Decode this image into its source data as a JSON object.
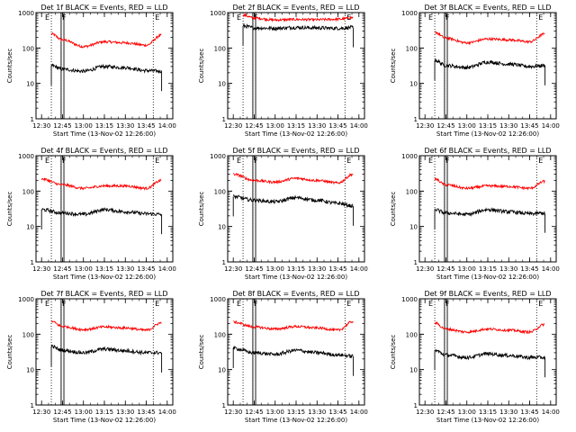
{
  "chart_data": [
    {
      "type": "line",
      "title": "Det 1f BLACK = Events, RED = LLD",
      "xlabel": "Start Time (13-Nov-02 12:26:00)",
      "ylabel": "Counts/sec",
      "y_scale": "log",
      "ylim": [
        1,
        1000
      ],
      "yticks": [
        "1",
        "10",
        "100",
        "1000"
      ],
      "xticks": [
        "12:30",
        "12:45",
        "13:00",
        "13:15",
        "13:30",
        "13:45",
        "14:00"
      ],
      "xlim": [
        "12:26",
        "14:04"
      ],
      "x": [
        "12:37",
        "12:45",
        "13:00",
        "13:15",
        "13:30",
        "13:45",
        "13:56"
      ],
      "series": [
        {
          "name": "LLD",
          "color": "#ff0000",
          "values": [
            250,
            170,
            110,
            150,
            140,
            120,
            230
          ]
        },
        {
          "name": "Events",
          "color": "#000000",
          "values": [
            32,
            25,
            22,
            30,
            28,
            23,
            22
          ]
        }
      ],
      "annotations": [
        "E",
        "F",
        "E"
      ],
      "dotted_lines": [
        "12:37",
        "12:44",
        "13:50"
      ],
      "box_lines": [
        "12:44",
        "12:46"
      ]
    },
    {
      "type": "line",
      "title": "Det 2f BLACK = Events, RED = LLD",
      "xlabel": "Start Time (13-Nov-02 12:26:00)",
      "ylabel": "Counts/sec",
      "y_scale": "log",
      "ylim": [
        1,
        1000
      ],
      "yticks": [
        "1",
        "10",
        "100",
        "1000"
      ],
      "xticks": [
        "12:30",
        "12:45",
        "13:00",
        "13:15",
        "13:30",
        "13:45",
        "14:00"
      ],
      "xlim": [
        "12:26",
        "14:04"
      ],
      "x": [
        "12:37",
        "12:45",
        "13:00",
        "13:15",
        "13:30",
        "13:45",
        "13:56"
      ],
      "series": [
        {
          "name": "LLD",
          "color": "#ff0000",
          "values": [
            850,
            700,
            620,
            640,
            630,
            650,
            720
          ]
        },
        {
          "name": "Events",
          "color": "#000000",
          "values": [
            420,
            370,
            360,
            380,
            370,
            360,
            380
          ]
        }
      ],
      "annotations": [
        "E",
        "F",
        "E"
      ],
      "dotted_lines": [
        "12:37",
        "12:44",
        "13:50"
      ],
      "box_lines": [
        "12:44",
        "12:46"
      ]
    },
    {
      "type": "line",
      "title": "Det 3f BLACK = Events, RED = LLD",
      "xlabel": "Start Time (13-Nov-02 12:26:00)",
      "ylabel": "Counts/sec",
      "y_scale": "log",
      "ylim": [
        1,
        1000
      ],
      "yticks": [
        "1",
        "10",
        "100",
        "1000"
      ],
      "xticks": [
        "12:30",
        "12:45",
        "13:00",
        "13:15",
        "13:30",
        "13:45",
        "14:00"
      ],
      "xlim": [
        "12:26",
        "14:04"
      ],
      "x": [
        "12:37",
        "12:45",
        "13:00",
        "13:15",
        "13:30",
        "13:45",
        "13:56"
      ],
      "series": [
        {
          "name": "LLD",
          "color": "#ff0000",
          "values": [
            280,
            190,
            140,
            180,
            170,
            150,
            250
          ]
        },
        {
          "name": "Events",
          "color": "#000000",
          "values": [
            45,
            32,
            28,
            40,
            35,
            30,
            32
          ]
        }
      ],
      "annotations": [
        "E",
        "F",
        "E"
      ],
      "dotted_lines": [
        "12:37",
        "12:44",
        "13:50"
      ],
      "box_lines": [
        "12:44",
        "12:46"
      ]
    },
    {
      "type": "line",
      "title": "Det 4f BLACK = Events, RED = LLD",
      "xlabel": "Start Time (13-Nov-02 12:26:00)",
      "ylabel": "Counts/sec",
      "y_scale": "log",
      "ylim": [
        1,
        1000
      ],
      "yticks": [
        "1",
        "10",
        "100",
        "1000"
      ],
      "xticks": [
        "12:30",
        "12:45",
        "13:00",
        "13:15",
        "13:30",
        "13:45",
        "14:00"
      ],
      "xlim": [
        "12:26",
        "14:04"
      ],
      "x": [
        "12:30",
        "12:45",
        "13:00",
        "13:15",
        "13:30",
        "13:45",
        "13:56"
      ],
      "series": [
        {
          "name": "LLD",
          "color": "#ff0000",
          "values": [
            220,
            150,
            120,
            140,
            140,
            120,
            200
          ]
        },
        {
          "name": "Events",
          "color": "#000000",
          "values": [
            30,
            24,
            22,
            30,
            26,
            23,
            22
          ]
        }
      ],
      "annotations": [
        "E",
        "F",
        "E"
      ],
      "dotted_lines": [
        "12:37",
        "12:44",
        "13:50"
      ],
      "box_lines": [
        "12:44",
        "12:46"
      ]
    },
    {
      "type": "line",
      "title": "Det 5f BLACK = Events, RED = LLD",
      "xlabel": "Start Time (13-Nov-02 12:26:00)",
      "ylabel": "Counts/sec",
      "y_scale": "log",
      "ylim": [
        1,
        1000
      ],
      "yticks": [
        "1",
        "10",
        "100",
        "1000"
      ],
      "xticks": [
        "12:30",
        "12:45",
        "13:00",
        "13:15",
        "13:30",
        "13:45",
        "14:00"
      ],
      "xlim": [
        "12:26",
        "14:04"
      ],
      "x": [
        "12:30",
        "12:45",
        "13:00",
        "13:15",
        "13:30",
        "13:45",
        "13:56"
      ],
      "series": [
        {
          "name": "LLD",
          "color": "#ff0000",
          "values": [
            300,
            200,
            180,
            230,
            200,
            170,
            300
          ]
        },
        {
          "name": "Events",
          "color": "#000000",
          "values": [
            70,
            55,
            50,
            65,
            55,
            45,
            38
          ]
        }
      ],
      "annotations": [
        "E",
        "F",
        "E"
      ],
      "dotted_lines": [
        "12:37",
        "12:44",
        "13:50"
      ],
      "box_lines": [
        "12:44",
        "12:46"
      ]
    },
    {
      "type": "line",
      "title": "Det 6f BLACK = Events, RED = LLD",
      "xlabel": "Start Time (13-Nov-02 12:26:00)",
      "ylabel": "Counts/sec",
      "y_scale": "log",
      "ylim": [
        1,
        1000
      ],
      "yticks": [
        "1",
        "10",
        "100",
        "1000"
      ],
      "xticks": [
        "12:30",
        "12:45",
        "13:00",
        "13:15",
        "13:30",
        "13:45",
        "14:00"
      ],
      "xlim": [
        "12:26",
        "14:04"
      ],
      "x": [
        "12:37",
        "12:45",
        "13:00",
        "13:15",
        "13:30",
        "13:45",
        "13:56"
      ],
      "series": [
        {
          "name": "LLD",
          "color": "#ff0000",
          "values": [
            220,
            150,
            120,
            140,
            135,
            120,
            190
          ]
        },
        {
          "name": "Events",
          "color": "#000000",
          "values": [
            30,
            24,
            22,
            30,
            26,
            23,
            24
          ]
        }
      ],
      "annotations": [
        "E",
        "F",
        "E"
      ],
      "dotted_lines": [
        "12:37",
        "12:44",
        "13:50"
      ],
      "box_lines": [
        "12:44",
        "12:46"
      ]
    },
    {
      "type": "line",
      "title": "Det 7f BLACK = Events, RED = LLD",
      "xlabel": "Start Time (13-Nov-02 12:26:00)",
      "ylabel": "Counts/sec",
      "y_scale": "log",
      "ylim": [
        1,
        1000
      ],
      "yticks": [
        "1",
        "10",
        "100",
        "1000"
      ],
      "xticks": [
        "12:30",
        "12:45",
        "13:00",
        "13:15",
        "13:30",
        "13:45",
        "14:00"
      ],
      "xlim": [
        "12:26",
        "14:04"
      ],
      "x": [
        "12:37",
        "12:45",
        "13:00",
        "13:15",
        "13:30",
        "13:45",
        "13:56"
      ],
      "series": [
        {
          "name": "LLD",
          "color": "#ff0000",
          "values": [
            230,
            165,
            135,
            160,
            150,
            130,
            210
          ]
        },
        {
          "name": "Events",
          "color": "#000000",
          "values": [
            45,
            35,
            30,
            38,
            34,
            30,
            30
          ]
        }
      ],
      "annotations": [
        "E",
        "F",
        "E"
      ],
      "dotted_lines": [
        "12:37",
        "12:44",
        "13:50"
      ],
      "box_lines": [
        "12:44",
        "12:46"
      ]
    },
    {
      "type": "line",
      "title": "Det 8f BLACK = Events, RED = LLD",
      "xlabel": "Start Time (13-Nov-02 12:26:00)",
      "ylabel": "Counts/sec",
      "y_scale": "log",
      "ylim": [
        1,
        1000
      ],
      "yticks": [
        "1",
        "10",
        "100",
        "1000"
      ],
      "xticks": [
        "12:30",
        "12:45",
        "13:00",
        "13:15",
        "13:30",
        "13:45",
        "14:00"
      ],
      "xlim": [
        "12:26",
        "14:04"
      ],
      "x": [
        "12:30",
        "12:45",
        "13:00",
        "13:15",
        "13:30",
        "13:45",
        "13:56"
      ],
      "series": [
        {
          "name": "LLD",
          "color": "#ff0000",
          "values": [
            220,
            160,
            140,
            165,
            150,
            130,
            230
          ]
        },
        {
          "name": "Events",
          "color": "#000000",
          "values": [
            40,
            30,
            27,
            35,
            30,
            26,
            24
          ]
        }
      ],
      "annotations": [
        "E",
        "F",
        "E"
      ],
      "dotted_lines": [
        "12:37",
        "12:44",
        "13:50"
      ],
      "box_lines": [
        "12:44",
        "12:46"
      ]
    },
    {
      "type": "line",
      "title": "Det 9f BLACK = Events, RED = LLD",
      "xlabel": "Start Time (13-Nov-02 12:26:00)",
      "ylabel": "Counts/sec",
      "y_scale": "log",
      "ylim": [
        1,
        1000
      ],
      "yticks": [
        "1",
        "10",
        "100",
        "1000"
      ],
      "xticks": [
        "12:30",
        "12:45",
        "13:00",
        "13:15",
        "13:30",
        "13:45",
        "14:00"
      ],
      "xlim": [
        "12:26",
        "14:04"
      ],
      "x": [
        "12:37",
        "12:45",
        "13:00",
        "13:15",
        "13:30",
        "13:45",
        "13:56"
      ],
      "series": [
        {
          "name": "LLD",
          "color": "#ff0000",
          "values": [
            210,
            140,
            115,
            140,
            130,
            115,
            190
          ]
        },
        {
          "name": "Events",
          "color": "#000000",
          "values": [
            35,
            26,
            22,
            28,
            25,
            22,
            22
          ]
        }
      ],
      "annotations": [
        "E",
        "F",
        "E"
      ],
      "dotted_lines": [
        "12:37",
        "12:44",
        "13:50"
      ],
      "box_lines": [
        "12:44",
        "12:46"
      ]
    }
  ]
}
